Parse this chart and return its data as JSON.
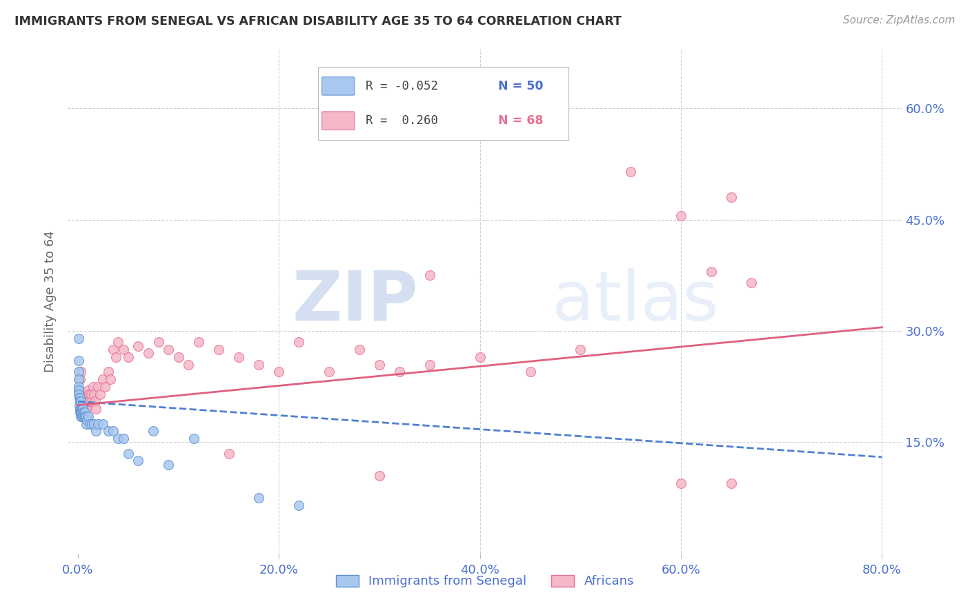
{
  "title": "IMMIGRANTS FROM SENEGAL VS AFRICAN DISABILITY AGE 35 TO 64 CORRELATION CHART",
  "source": "Source: ZipAtlas.com",
  "xlabel_tick_vals": [
    0.0,
    0.2,
    0.4,
    0.6,
    0.8
  ],
  "ylabel": "Disability Age 35 to 64",
  "ylabel_tick_vals": [
    0.15,
    0.3,
    0.45,
    0.6
  ],
  "xlim": [
    -0.01,
    0.82
  ],
  "ylim": [
    0.0,
    0.68
  ],
  "watermark_zip": "ZIP",
  "watermark_atlas": "atlas",
  "legend_r1": "R = -0.052",
  "legend_n1": "N = 50",
  "legend_r2": "R =  0.260",
  "legend_n2": "N = 68",
  "blue_scatter_x": [
    0.0005,
    0.0005,
    0.0008,
    0.001,
    0.001,
    0.001,
    0.001,
    0.0015,
    0.0015,
    0.002,
    0.002,
    0.002,
    0.002,
    0.0025,
    0.003,
    0.003,
    0.003,
    0.003,
    0.0035,
    0.004,
    0.004,
    0.004,
    0.005,
    0.005,
    0.005,
    0.006,
    0.006,
    0.007,
    0.007,
    0.008,
    0.008,
    0.009,
    0.01,
    0.012,
    0.014,
    0.016,
    0.018,
    0.02,
    0.025,
    0.03,
    0.035,
    0.04,
    0.045,
    0.05,
    0.06,
    0.075,
    0.09,
    0.115,
    0.18,
    0.22
  ],
  "blue_scatter_y": [
    0.29,
    0.245,
    0.26,
    0.235,
    0.225,
    0.22,
    0.215,
    0.21,
    0.2,
    0.21,
    0.205,
    0.195,
    0.19,
    0.205,
    0.205,
    0.195,
    0.19,
    0.185,
    0.19,
    0.2,
    0.195,
    0.185,
    0.195,
    0.19,
    0.185,
    0.19,
    0.185,
    0.19,
    0.185,
    0.185,
    0.175,
    0.18,
    0.185,
    0.175,
    0.175,
    0.175,
    0.165,
    0.175,
    0.175,
    0.165,
    0.165,
    0.155,
    0.155,
    0.135,
    0.125,
    0.165,
    0.12,
    0.155,
    0.075,
    0.065
  ],
  "pink_scatter_x": [
    0.001,
    0.002,
    0.002,
    0.003,
    0.003,
    0.004,
    0.004,
    0.005,
    0.005,
    0.006,
    0.006,
    0.007,
    0.007,
    0.008,
    0.008,
    0.009,
    0.009,
    0.01,
    0.01,
    0.011,
    0.012,
    0.013,
    0.014,
    0.015,
    0.016,
    0.017,
    0.018,
    0.02,
    0.022,
    0.025,
    0.027,
    0.03,
    0.032,
    0.035,
    0.038,
    0.04,
    0.045,
    0.05,
    0.06,
    0.07,
    0.08,
    0.09,
    0.1,
    0.11,
    0.12,
    0.14,
    0.16,
    0.18,
    0.2,
    0.22,
    0.25,
    0.28,
    0.3,
    0.32,
    0.35,
    0.4,
    0.45,
    0.5,
    0.55,
    0.6,
    0.63,
    0.65,
    0.67,
    0.3,
    0.15,
    0.35,
    0.6,
    0.65
  ],
  "pink_scatter_y": [
    0.22,
    0.235,
    0.195,
    0.245,
    0.21,
    0.2,
    0.195,
    0.215,
    0.19,
    0.205,
    0.195,
    0.205,
    0.195,
    0.205,
    0.195,
    0.215,
    0.205,
    0.22,
    0.21,
    0.215,
    0.205,
    0.215,
    0.205,
    0.225,
    0.215,
    0.205,
    0.195,
    0.225,
    0.215,
    0.235,
    0.225,
    0.245,
    0.235,
    0.275,
    0.265,
    0.285,
    0.275,
    0.265,
    0.28,
    0.27,
    0.285,
    0.275,
    0.265,
    0.255,
    0.285,
    0.275,
    0.265,
    0.255,
    0.245,
    0.285,
    0.245,
    0.275,
    0.255,
    0.245,
    0.255,
    0.265,
    0.245,
    0.275,
    0.515,
    0.455,
    0.38,
    0.48,
    0.365,
    0.105,
    0.135,
    0.375,
    0.095,
    0.095
  ],
  "blue_line_x": [
    0.0,
    0.8
  ],
  "blue_line_y_start": 0.205,
  "blue_line_y_end": 0.13,
  "pink_line_x": [
    0.0,
    0.8
  ],
  "pink_line_y_start": 0.2,
  "pink_line_y_end": 0.305,
  "scatter_size": 100,
  "blue_color": "#a8c8f0",
  "pink_color": "#f5b8c8",
  "blue_edge_color": "#6090d0",
  "pink_edge_color": "#e87090",
  "blue_line_color": "#5080d0",
  "pink_line_color": "#e06080",
  "grid_color": "#d0d0d0",
  "title_color": "#333333",
  "axis_label_color": "#4a6fd0",
  "background_color": "#ffffff"
}
